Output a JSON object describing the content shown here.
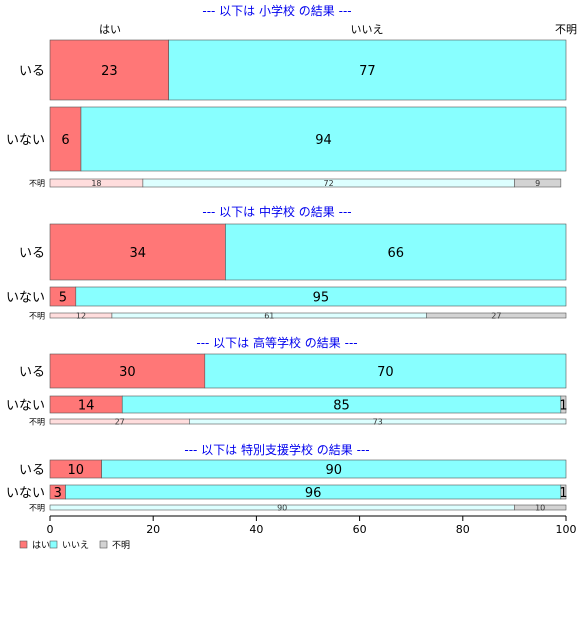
{
  "chart_data": {
    "type": "bar",
    "orientation": "horizontal-stacked",
    "column_headers": [
      "はい",
      "いいえ",
      "不明"
    ],
    "x_ticks": [
      "0",
      "20",
      "40",
      "60",
      "80",
      "100"
    ],
    "xlim": [
      0,
      100
    ],
    "legend": {
      "position": "bottom-left",
      "entries": [
        {
          "label": "はい",
          "color": "#ff7777"
        },
        {
          "label": "いいえ",
          "color": "#88ffff"
        },
        {
          "label": "不明",
          "color": "#d3d3d3"
        }
      ]
    },
    "panels": [
      {
        "title": "--- 以下は 小学校 の結果 ---",
        "rows": [
          {
            "label": "いる",
            "values": [
              23,
              77,
              0
            ],
            "size": "large"
          },
          {
            "label": "いない",
            "values": [
              6,
              94,
              0
            ],
            "size": "large"
          },
          {
            "label": "不明",
            "values": [
              18,
              72,
              9
            ],
            "size": "small"
          }
        ]
      },
      {
        "title": "--- 以下は 中学校 の結果 ---",
        "rows": [
          {
            "label": "いる",
            "values": [
              34,
              66,
              0
            ],
            "size": "large"
          },
          {
            "label": "いない",
            "values": [
              5,
              95,
              0
            ],
            "size": "large"
          },
          {
            "label": "不明",
            "values": [
              12,
              61,
              27
            ],
            "size": "small"
          }
        ]
      },
      {
        "title": "--- 以下は 高等学校 の結果 ---",
        "rows": [
          {
            "label": "いる",
            "values": [
              30,
              70,
              0
            ],
            "size": "large"
          },
          {
            "label": "いない",
            "values": [
              14,
              85,
              1
            ],
            "size": "large"
          },
          {
            "label": "不明",
            "values": [
              27,
              73,
              0
            ],
            "size": "small"
          }
        ]
      },
      {
        "title": "--- 以下は 特別支援学校 の結果 ---",
        "rows": [
          {
            "label": "いる",
            "values": [
              10,
              90,
              0
            ],
            "size": "large"
          },
          {
            "label": "いない",
            "values": [
              3,
              96,
              1
            ],
            "size": "large"
          },
          {
            "label": "不明",
            "values": [
              0,
              90,
              10
            ],
            "size": "small"
          }
        ]
      }
    ]
  }
}
